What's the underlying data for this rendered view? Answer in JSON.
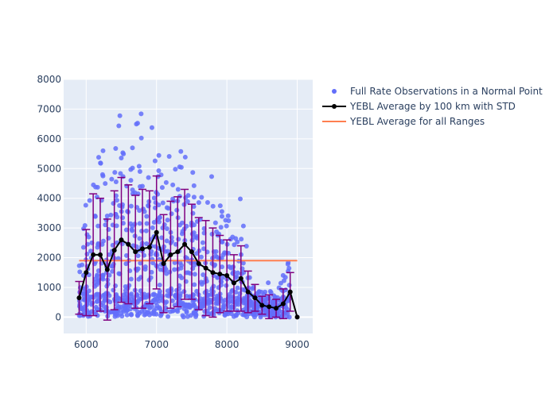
{
  "chart_data": {
    "type": "scatter",
    "title": "",
    "xlabel": "",
    "ylabel": "",
    "xlim": [
      5680,
      9220
    ],
    "ylim": [
      -550,
      8000
    ],
    "x_ticks": [
      6000,
      7000,
      8000,
      9000
    ],
    "y_ticks": [
      0,
      1000,
      2000,
      3000,
      4000,
      5000,
      6000,
      7000,
      8000
    ],
    "grid": true,
    "plot_background": "#e5ecf6",
    "legend_position": "right",
    "series": [
      {
        "name": "Full Rate Observations in a Normal Point",
        "kind": "scatter",
        "color": "#636efa",
        "x_range": [
          5900,
          8900
        ]
      },
      {
        "name": "YEBL Average by 100 km with STD",
        "kind": "line_errorbars",
        "color": "#000000",
        "error_color": "#800080",
        "x": [
          5900,
          6000,
          6100,
          6200,
          6300,
          6400,
          6500,
          6600,
          6700,
          6800,
          6900,
          7000,
          7100,
          7200,
          7300,
          7400,
          7500,
          7600,
          7700,
          7800,
          7900,
          8000,
          8100,
          8200,
          8300,
          8400,
          8500,
          8600,
          8700,
          8800,
          8900,
          9000
        ],
        "y": [
          650,
          1500,
          2100,
          2100,
          1600,
          2250,
          2600,
          2450,
          2200,
          2300,
          2350,
          2850,
          1800,
          2100,
          2200,
          2450,
          2200,
          1800,
          1650,
          1500,
          1450,
          1400,
          1150,
          1300,
          850,
          650,
          400,
          350,
          300,
          450,
          850,
          0
        ],
        "std": [
          550,
          1450,
          2050,
          1900,
          1700,
          2000,
          2100,
          2000,
          1900,
          2000,
          1900,
          1900,
          1650,
          1800,
          1850,
          1850,
          1600,
          1550,
          1600,
          1500,
          1300,
          1200,
          950,
          1100,
          700,
          450,
          300,
          400,
          300,
          500,
          650,
          0
        ]
      },
      {
        "name": "YEBL Average for all Ranges",
        "kind": "hline",
        "color": "#ff7f50",
        "y": 1900,
        "x_range": [
          5900,
          9000
        ]
      }
    ]
  }
}
